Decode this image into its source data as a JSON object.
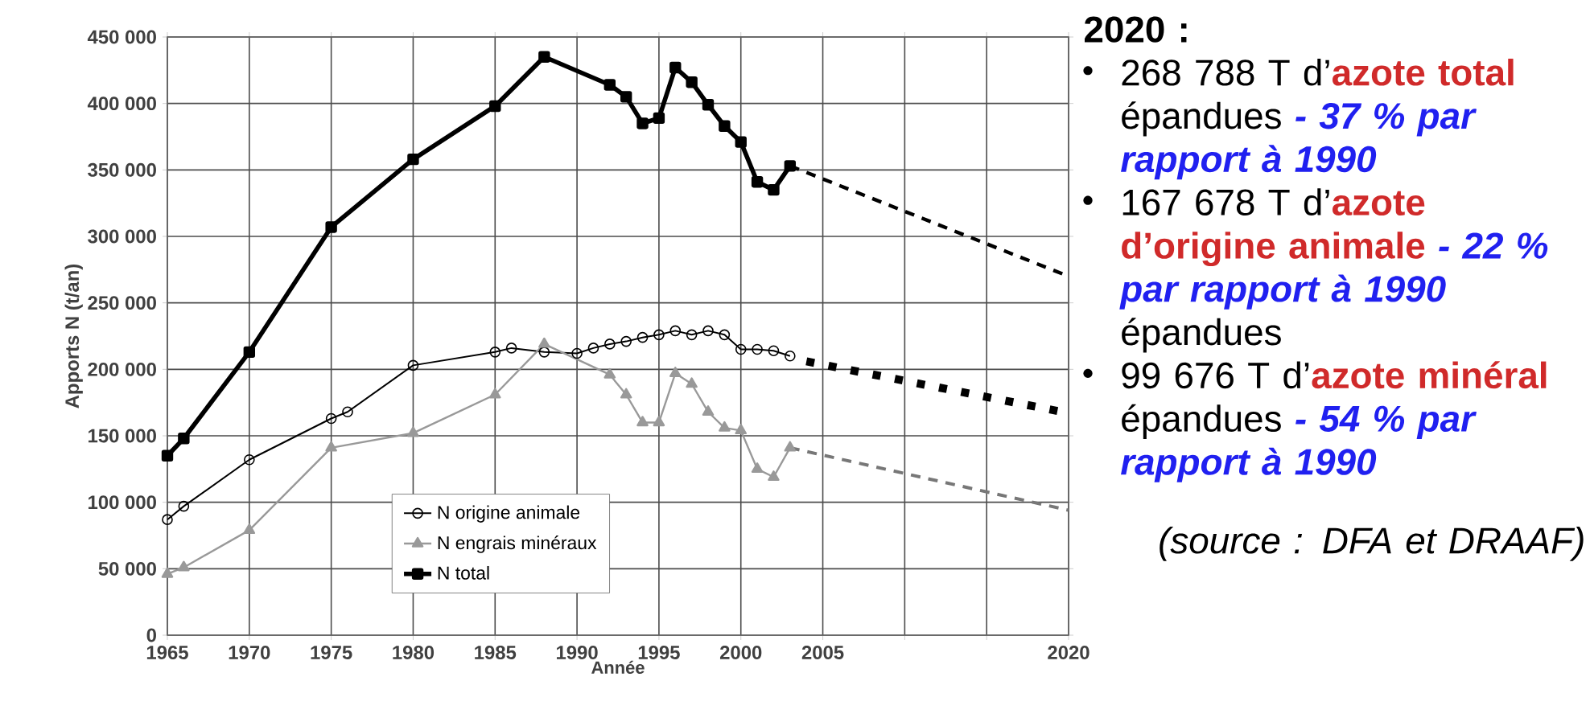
{
  "chart_data": {
    "type": "line",
    "xlabel": "Année",
    "ylabel": "Apports N (t/an)",
    "xlim": [
      1965,
      2020
    ],
    "ylim": [
      0,
      450000
    ],
    "xticks": [
      1965,
      1970,
      1975,
      1980,
      1985,
      1990,
      1995,
      2000,
      2005,
      {
        "value": 2010,
        "label": null
      },
      {
        "value": 2015,
        "label": null
      },
      2020
    ],
    "yticks": [
      {
        "value": 0,
        "label": "0"
      },
      {
        "value": 50000,
        "label": "50 000"
      },
      {
        "value": 100000,
        "label": "100 000"
      },
      {
        "value": 150000,
        "label": "150 000"
      },
      {
        "value": 200000,
        "label": "200 000"
      },
      {
        "value": 250000,
        "label": "250 000"
      },
      {
        "value": 300000,
        "label": "300 000"
      },
      {
        "value": 350000,
        "label": "350 000"
      },
      {
        "value": 400000,
        "label": "400 000"
      },
      {
        "value": 450000,
        "label": "450 000"
      }
    ],
    "grid": true,
    "legend": "bottom",
    "series": [
      {
        "name": "N origine animale",
        "color": "#000000",
        "marker": "circle",
        "line_style": "solid",
        "x": [
          1965,
          1966,
          1970,
          1975,
          1976,
          1980,
          1985,
          1986,
          1988,
          1990,
          1991,
          1992,
          1993,
          1994,
          1995,
          1996,
          1997,
          1998,
          1999,
          2000,
          2001,
          2002,
          2003
        ],
        "values": [
          87000,
          97000,
          132000,
          163000,
          168000,
          203000,
          213000,
          216000,
          213000,
          212000,
          216000,
          219000,
          221000,
          224000,
          226000,
          229000,
          226000,
          229000,
          226000,
          215000,
          215000,
          214000,
          210000
        ]
      },
      {
        "name": "N engrais minéraux",
        "color": "#999999",
        "marker": "triangle",
        "line_style": "solid",
        "x": [
          1965,
          1966,
          1970,
          1975,
          1980,
          1985,
          1988,
          1992,
          1993,
          1994,
          1995,
          1996,
          1997,
          1998,
          1999,
          2000,
          2001,
          2002,
          2003
        ],
        "values": [
          46000,
          51000,
          79000,
          141000,
          152000,
          181000,
          219000,
          196000,
          181000,
          160000,
          160000,
          197000,
          189000,
          168000,
          156000,
          154000,
          125000,
          119000,
          141000
        ]
      },
      {
        "name": "N total",
        "color": "#000000",
        "marker": "square",
        "line_style": "solid",
        "x": [
          1965,
          1966,
          1970,
          1975,
          1980,
          1985,
          1988,
          1992,
          1993,
          1994,
          1995,
          1996,
          1997,
          1998,
          1999,
          2000,
          2001,
          2002,
          2003
        ],
        "values": [
          135000,
          148000,
          213000,
          307000,
          358000,
          398000,
          435000,
          414000,
          405000,
          385000,
          389000,
          427000,
          416000,
          399000,
          383000,
          371000,
          341000,
          335000,
          353000
        ]
      },
      {
        "color": "#000000",
        "marker": "none",
        "line_style": "dashed",
        "x": [
          2003,
          2020
        ],
        "values": [
          353000,
          270000
        ]
      },
      {
        "color": "#000000",
        "marker": "none",
        "line_style": "dotted",
        "x": [
          2004,
          2020
        ],
        "values": [
          206000,
          167000
        ]
      },
      {
        "color": "#777777",
        "marker": "none",
        "line_style": "dashed",
        "x": [
          2003,
          2020
        ],
        "values": [
          141000,
          94000
        ]
      }
    ],
    "annotations": [
      "2020 :",
      "268 788 T d’",
      "azote total",
      "épandues",
      "- 37 % par rapport à 1990",
      "167 678 T d’",
      "azote d’origine animale",
      "- 22 % par rapport à 1990",
      "épandues",
      "99 676 T d’",
      "azote minéral",
      "épandues",
      "- 54 % par rapport à 1990",
      "(source : DFA et DRAAF)"
    ]
  }
}
